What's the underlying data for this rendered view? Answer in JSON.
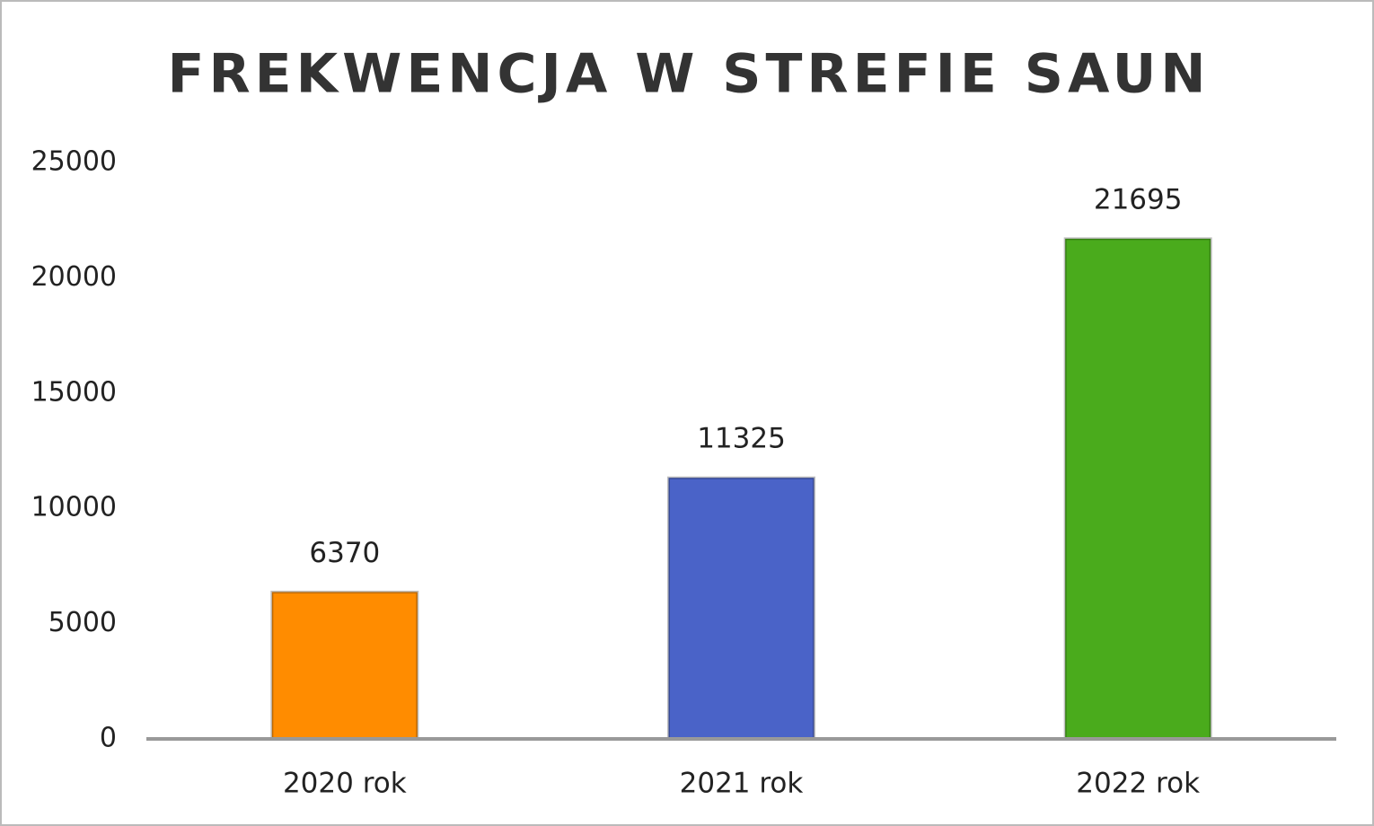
{
  "chart_data": {
    "type": "bar",
    "title": "FREKWENCJA W STREFIE SAUN",
    "categories": [
      "2020 rok",
      "2021 rok",
      "2022 rok"
    ],
    "values": [
      6370,
      11325,
      21695
    ],
    "colors": [
      "#ff8c00",
      "#4a63c8",
      "#4aab1c"
    ],
    "ylim": [
      0,
      25000
    ],
    "yticks": [
      0,
      5000,
      10000,
      15000,
      20000,
      25000
    ],
    "grid": false
  }
}
